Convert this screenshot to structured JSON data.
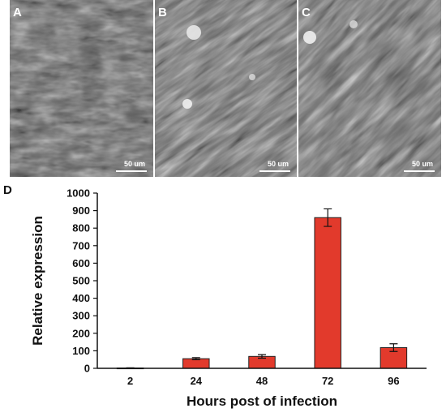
{
  "figure": {
    "panels": [
      {
        "letter": "A",
        "scale_label": "50 um"
      },
      {
        "letter": "B",
        "scale_label": "50 um"
      },
      {
        "letter": "C",
        "scale_label": "50 um"
      }
    ],
    "chart_letter": "D"
  },
  "chart_data": {
    "type": "bar",
    "categories": [
      "2",
      "24",
      "48",
      "72",
      "96"
    ],
    "values": [
      2,
      55,
      68,
      860,
      118
    ],
    "errors": [
      1,
      6,
      10,
      50,
      22
    ],
    "title": "",
    "xlabel": "Hours post of infection",
    "ylabel": "Relative expression",
    "ylim": [
      0,
      1000
    ],
    "yticks": [
      0,
      100,
      200,
      300,
      400,
      500,
      600,
      700,
      800,
      900,
      1000
    ],
    "bar_color": "#e23a2c",
    "grid": false
  }
}
